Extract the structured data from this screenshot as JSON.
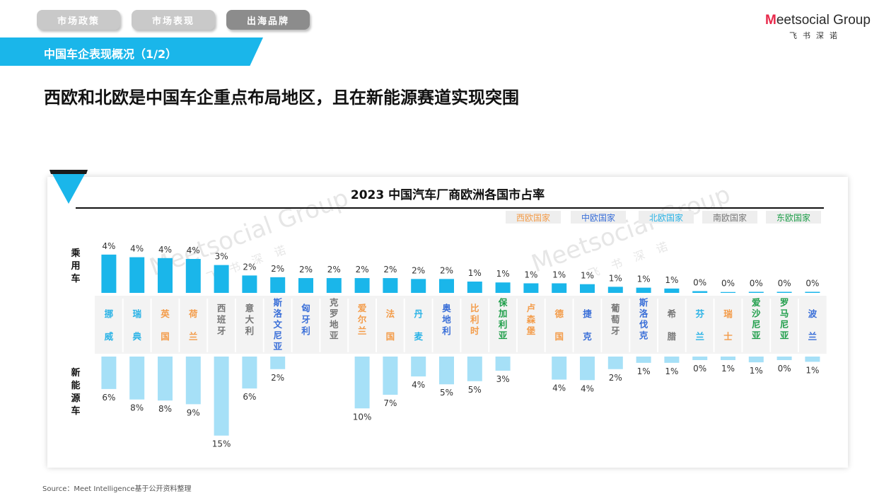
{
  "nav": {
    "tabs": [
      {
        "label": "市场政策",
        "active": false
      },
      {
        "label": "市场表现",
        "active": false
      },
      {
        "label": "出海品牌",
        "active": true
      }
    ]
  },
  "logo": {
    "mark": "M",
    "word": "eetsocial Group",
    "sub": "飞书深诺"
  },
  "section": {
    "title": "中国车企表现概况（1/2）"
  },
  "headline": "西欧和北欧是中国车企重点布局地区，且在新能源赛道实现突围",
  "source": "Source：Meet Intelligence基于公开资料整理",
  "watermark": "Meetsocial Group",
  "watermark_sub": "飞书深诺",
  "colors": {
    "accent": "#1ab6ea",
    "passenger_bar": "#1ab6ea",
    "nev_bar": "#a6e0f7",
    "west": "#f39c4a",
    "central": "#3a6fd8",
    "north": "#2bb3e6",
    "south": "#777777",
    "east": "#1f9e4a"
  },
  "chart_data": {
    "type": "bar",
    "title": "2023 中国汽车厂商欧洲各国市占率",
    "legend": [
      {
        "name": "西欧国家",
        "region": "west"
      },
      {
        "name": "中欧国家",
        "region": "central"
      },
      {
        "name": "北欧国家",
        "region": "north"
      },
      {
        "name": "南欧国家",
        "region": "south"
      },
      {
        "name": "东欧国家",
        "region": "east"
      }
    ],
    "legend_position": "top-right",
    "categories": [
      "挪威",
      "瑞典",
      "英国",
      "荷兰",
      "西班牙",
      "意大利",
      "斯洛文尼亚",
      "匈牙利",
      "克罗地亚",
      "爱尔兰",
      "法国",
      "丹麦",
      "奥地利",
      "比利时",
      "保加利亚",
      "卢森堡",
      "德国",
      "捷克",
      "葡萄牙",
      "斯洛伐克",
      "希腊",
      "芬兰",
      "瑞士",
      "爱沙尼亚",
      "罗马尼亚",
      "波兰"
    ],
    "category_regions": [
      "north",
      "north",
      "west",
      "west",
      "south",
      "south",
      "central",
      "central",
      "south",
      "west",
      "west",
      "north",
      "central",
      "west",
      "east",
      "west",
      "west",
      "central",
      "south",
      "central",
      "south",
      "north",
      "west",
      "east",
      "east",
      "central"
    ],
    "series": [
      {
        "name": "乘用车",
        "values": [
          4.4,
          4.1,
          4.0,
          3.9,
          3.2,
          2.0,
          1.8,
          1.7,
          1.7,
          1.7,
          1.7,
          1.6,
          1.6,
          1.3,
          1.2,
          1.1,
          1.1,
          1.0,
          0.7,
          0.6,
          0.5,
          0.2,
          0.1,
          0.0,
          0.0,
          0.0
        ],
        "labels": [
          "4%",
          "4%",
          "4%",
          "4%",
          "3%",
          "2%",
          "2%",
          "2%",
          "2%",
          "2%",
          "2%",
          "2%",
          "2%",
          "1%",
          "1%",
          "1%",
          "1%",
          "1%",
          "1%",
          "1%",
          "1%",
          "0%",
          "0%",
          "0%",
          "0%",
          "0%"
        ]
      },
      {
        "name": "新能源车",
        "values": [
          6.2,
          8.2,
          8.4,
          9.1,
          15.1,
          6.1,
          2.4,
          null,
          null,
          9.9,
          7.3,
          3.8,
          5.3,
          4.7,
          2.7,
          null,
          4.4,
          4.5,
          2.4,
          1.2,
          1.2,
          0.5,
          0.6,
          1.1,
          0.5,
          1.0
        ],
        "labels": [
          "6%",
          "8%",
          "8%",
          "9%",
          "15%",
          "6%",
          "2%",
          "",
          "",
          "10%",
          "7%",
          "4%",
          "5%",
          "5%",
          "3%",
          "",
          "4%",
          "4%",
          "2%",
          "1%",
          "1%",
          "0%",
          "1%",
          "1%",
          "0%",
          "1%"
        ]
      }
    ],
    "ylabel_top": "乘用车",
    "ylabel_bottom": "新能源车"
  }
}
